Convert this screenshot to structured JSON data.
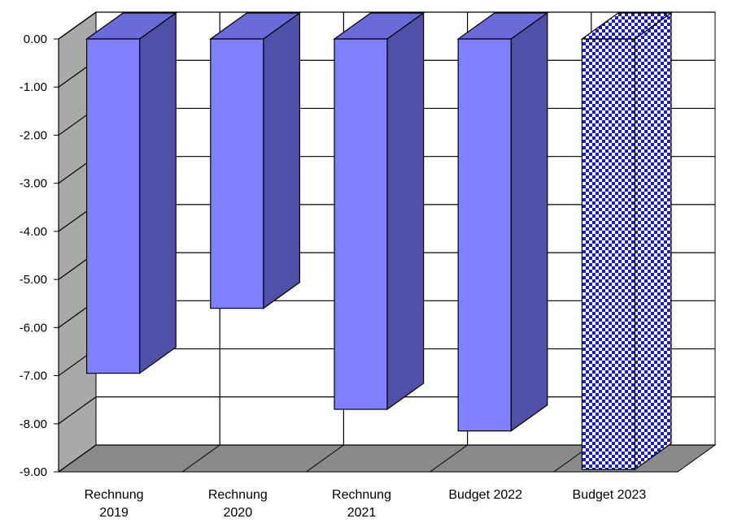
{
  "chart_data": {
    "type": "bar",
    "style": "3d-column",
    "title": "",
    "xlabel": "",
    "ylabel": "",
    "categories": [
      [
        "Rechnung",
        "2019"
      ],
      [
        "Rechnung",
        "2020"
      ],
      [
        "Rechnung",
        "2021"
      ],
      [
        "Budget 2022"
      ],
      [
        "Budget 2023"
      ]
    ],
    "values": [
      -6.95,
      -5.6,
      -7.7,
      -8.15,
      -8.95
    ],
    "bar_styles": [
      "solid",
      "solid",
      "solid",
      "solid",
      "checker"
    ],
    "y_ticks": [
      "0.00",
      "-1.00",
      "-2.00",
      "-3.00",
      "-4.00",
      "-5.00",
      "-6.00",
      "-7.00",
      "-8.00",
      "-9.00"
    ],
    "ylim": [
      -9,
      0
    ],
    "grid": true,
    "legend": "none",
    "colors": {
      "bar_front": "#8080ff",
      "bar_side": "#5050a8",
      "bar_top": "#6a6ad8",
      "checker_dark": "#1a1ad0",
      "checker_light": "#ffffff",
      "wall_side": "#a9a9a9",
      "floor": "#8a8a8a",
      "grid": "#000000"
    }
  }
}
